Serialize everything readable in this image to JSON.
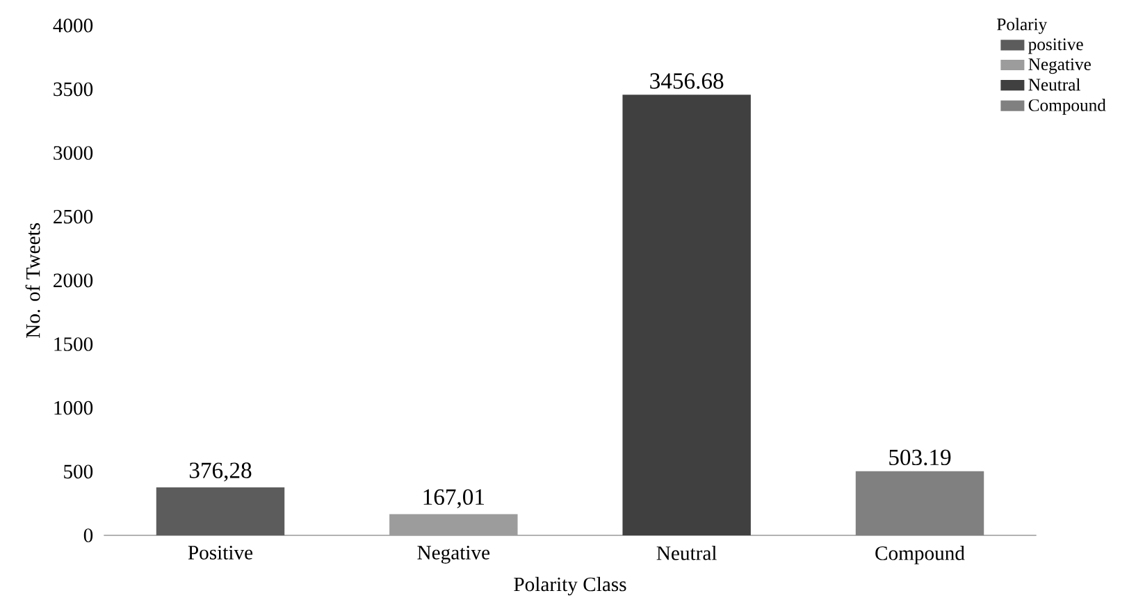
{
  "chart_data": {
    "type": "bar",
    "xlabel": "Polarity Class",
    "ylabel": "No. of Tweets",
    "legend_title": "Polariy",
    "legend": "top right",
    "categories": [
      "Positive",
      "Negative",
      "Neutral",
      "Compound"
    ],
    "series": [
      {
        "name": "positive",
        "color": "#5c5c5c",
        "values": [
          376.28,
          null,
          null,
          null
        ],
        "value_labels": [
          "376,28",
          null,
          null,
          null
        ]
      },
      {
        "name": "Negative",
        "color": "#9c9c9c",
        "values": [
          null,
          167.01,
          null,
          null
        ],
        "value_labels": [
          null,
          "167,01",
          null,
          null
        ]
      },
      {
        "name": "Neutral",
        "color": "#404040",
        "values": [
          null,
          null,
          3456.68,
          null
        ],
        "value_labels": [
          null,
          null,
          "3456.68",
          null
        ]
      },
      {
        "name": "Compound",
        "color": "#808080",
        "values": [
          null,
          null,
          null,
          503.19
        ],
        "value_labels": [
          null,
          null,
          null,
          "503.19"
        ]
      }
    ],
    "ylim": [
      0,
      4000
    ],
    "yticks": [
      0,
      500,
      1000,
      1500,
      2000,
      2500,
      3000,
      3500,
      4000
    ],
    "grid": false
  }
}
